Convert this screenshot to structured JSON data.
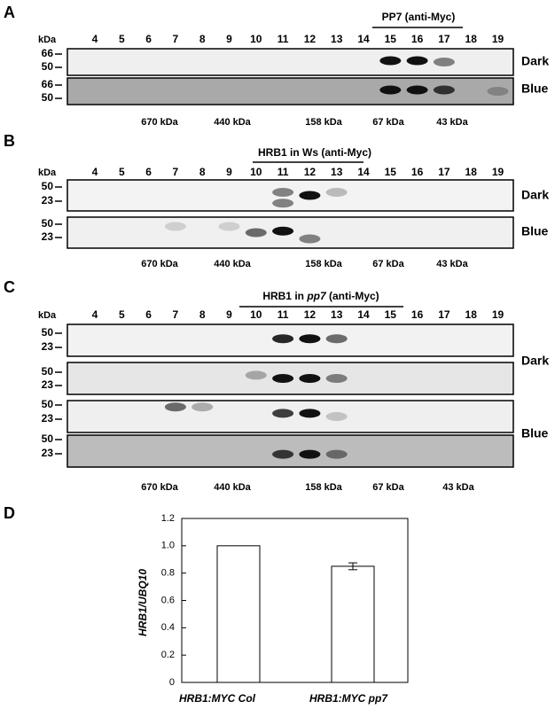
{
  "panels": [
    {
      "label": "A",
      "title_parts": [
        "PP7 (anti-Myc)"
      ],
      "kda_label": "kDa",
      "fractions": [
        "4",
        "5",
        "6",
        "7",
        "8",
        "9",
        "10",
        "11",
        "12",
        "13",
        "14",
        "15",
        "16",
        "17",
        "18",
        "19"
      ],
      "blots": [
        {
          "markers": [
            "66",
            "50"
          ]
        },
        {
          "markers": [
            "66",
            "50"
          ]
        }
      ],
      "conditions": [
        "Dark",
        "Blue"
      ],
      "size_markers": [
        "670 kDa",
        "440 kDa",
        "158 kDa",
        "67 kDa",
        "43 kDa"
      ]
    },
    {
      "label": "B",
      "title_parts": [
        "HRB1 in Ws (anti-Myc)"
      ],
      "kda_label": "kDa",
      "fractions": [
        "4",
        "5",
        "6",
        "7",
        "8",
        "9",
        "10",
        "11",
        "12",
        "13",
        "14",
        "15",
        "16",
        "17",
        "18",
        "19"
      ],
      "blots": [
        {
          "markers": [
            "50",
            "23"
          ]
        },
        {
          "markers": [
            "50",
            "23"
          ]
        }
      ],
      "conditions": [
        "Dark",
        "Blue"
      ],
      "size_markers": [
        "670 kDa",
        "440 kDa",
        "158 kDa",
        "67 kDa",
        "43 kDa"
      ]
    },
    {
      "label": "C",
      "title_parts": [
        "HRB1 in ",
        "pp7",
        " (anti-Myc)"
      ],
      "kda_label": "kDa",
      "fractions": [
        "4",
        "5",
        "6",
        "7",
        "8",
        "9",
        "10",
        "11",
        "12",
        "13",
        "14",
        "15",
        "16",
        "17",
        "18",
        "19"
      ],
      "blots": [
        {
          "markers": [
            "50",
            "23"
          ]
        },
        {
          "markers": [
            "50",
            "23"
          ]
        },
        {
          "markers": [
            "50",
            "23"
          ]
        },
        {
          "markers": [
            "50",
            "23"
          ]
        }
      ],
      "conditions": [
        "Dark",
        "Blue"
      ],
      "size_markers": [
        "670 kDa",
        "440 kDa",
        "158 kDa",
        "67 kDa",
        "43 kDa"
      ]
    }
  ],
  "chart_data": {
    "type": "bar",
    "label": "D",
    "ylabel": "HRB1/UBQ10",
    "categories": [
      "HRB1:MYC Col",
      "HRB1:MYC pp7"
    ],
    "values": [
      1.0,
      0.85
    ],
    "errors": [
      null,
      0.025
    ],
    "color": "#ffffff",
    "ylim": [
      0,
      1.2
    ],
    "yticks": [
      0,
      0.2,
      0.4,
      0.6,
      0.8,
      {
        "value": 1,
        "label": "1.0"
      },
      1.2
    ]
  }
}
